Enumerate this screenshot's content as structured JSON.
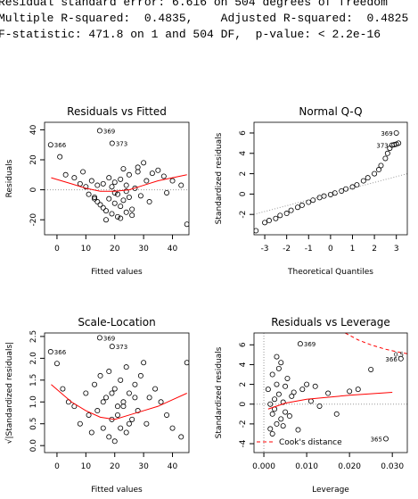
{
  "console": [
    "Residual standard error: 6.616 on 504 degrees of freedom",
    "Multiple R-squared:  0.4835,    Adjusted R-squared:  0.4825",
    "F-statistic: 471.8 on 1 and 504 DF,  p-value: < 2.2e-16"
  ],
  "chart_data": [
    {
      "type": "scatter",
      "title": "Residuals vs Fitted",
      "xlabel": "Fitted values",
      "ylabel": "Residuals",
      "xlim": [
        -4.3,
        45.7
      ],
      "ylim": [
        -30,
        45
      ],
      "xticks": [
        0,
        10,
        20,
        30,
        40
      ],
      "yticks": [
        -20,
        0,
        20,
        40
      ],
      "hline": 0,
      "series": [
        {
          "color": "#000000",
          "x": [
            -2.2,
            14.8,
            19.1,
            1,
            3,
            6,
            8,
            9,
            10,
            11,
            12,
            13,
            14,
            14,
            15,
            16,
            16,
            17,
            18,
            18,
            19,
            19,
            20,
            20,
            21,
            21,
            22,
            22,
            23,
            23,
            24,
            24,
            25,
            25,
            26,
            27,
            28,
            29,
            30,
            31,
            32,
            33,
            35,
            37,
            38,
            40,
            43,
            45,
            17,
            22,
            26,
            13,
            20,
            24,
            28
          ],
          "values": [
            30,
            39.4,
            31,
            22,
            10,
            8,
            4,
            12,
            2,
            -3,
            6,
            -5,
            -8,
            3,
            -10,
            -12,
            4,
            -14,
            -6,
            8,
            -16,
            2,
            -9,
            5,
            -18,
            -3,
            -11,
            7,
            -7,
            14,
            -15,
            3,
            -5,
            10,
            -13,
            1,
            12,
            -4,
            18,
            6,
            -8,
            11,
            13,
            9,
            -2,
            6,
            3,
            -23,
            -20,
            -19,
            -17,
            -6,
            -2,
            -1,
            15
          ]
        },
        {
          "color": "#ff0000",
          "style": "line",
          "x": [
            -2,
            5,
            10,
            15,
            20,
            25,
            30,
            35,
            40,
            45
          ],
          "values": [
            8,
            4,
            1,
            -1,
            -1,
            0,
            3,
            6,
            8,
            10
          ]
        }
      ],
      "annotations": [
        {
          "text": "366",
          "x": -2.2,
          "y": 30
        },
        {
          "text": "369",
          "x": 14.8,
          "y": 39.4
        },
        {
          "text": "373",
          "x": 19.1,
          "y": 31
        }
      ]
    },
    {
      "type": "scatter",
      "title": "Normal Q-Q",
      "xlabel": "Theoretical Quantiles",
      "ylabel": "Standardized residuals",
      "xlim": [
        -3.49,
        3.5
      ],
      "ylim": [
        -4,
        7.05
      ],
      "xticks": [
        -3,
        -2,
        -1,
        0,
        1,
        2,
        3
      ],
      "yticks": [
        -2,
        0,
        2,
        4,
        6
      ],
      "series": [
        {
          "color": "#000000",
          "x": [
            -3.4,
            -3,
            -2.8,
            -2.5,
            -2.3,
            -2,
            -1.8,
            -1.5,
            -1.3,
            -1,
            -0.8,
            -0.5,
            -0.3,
            0,
            0.2,
            0.5,
            0.7,
            1,
            1.2,
            1.5,
            1.7,
            2,
            2.2,
            2.3,
            2.5,
            2.6,
            2.7,
            2.8,
            2.9,
            3.0,
            3.1,
            3.0
          ],
          "values": [
            -3.6,
            -2.8,
            -2.6,
            -2.4,
            -2.1,
            -1.9,
            -1.6,
            -1.3,
            -1.1,
            -0.8,
            -0.6,
            -0.35,
            -0.2,
            -0.05,
            0.1,
            0.3,
            0.5,
            0.7,
            0.9,
            1.3,
            1.6,
            2.0,
            2.4,
            2.8,
            3.5,
            4.0,
            4.5,
            4.8,
            4.85,
            4.9,
            5.0,
            6.0
          ]
        },
        {
          "color": "#999999",
          "style": "dotted",
          "x": [
            -3.5,
            3.5
          ],
          "values": [
            -2,
            2
          ]
        }
      ],
      "annotations": [
        {
          "text": "369",
          "x": 3.0,
          "y": 6.0
        },
        {
          "text": "373",
          "x": 2.8,
          "y": 4.8
        }
      ]
    },
    {
      "type": "scatter",
      "title": "Scale-Location",
      "xlabel": "Fitted values",
      "ylabel": "√|Standardized residuals|",
      "xlim": [
        -4.3,
        45.7
      ],
      "ylim": [
        -0.16,
        2.58
      ],
      "xticks": [
        0,
        10,
        20,
        30,
        40
      ],
      "yticks": [
        {
          "value": 0,
          "label": "0.0"
        },
        0.5,
        {
          "value": 1,
          "label": "1.0"
        },
        1.5,
        {
          "value": 2,
          "label": "2.0"
        },
        2.5
      ],
      "series": [
        {
          "color": "#000000",
          "x": [
            -2.2,
            14.8,
            19.1,
            0,
            2,
            4,
            6,
            8,
            10,
            11,
            12,
            13,
            14,
            15,
            16,
            17,
            18,
            18,
            19,
            20,
            20,
            21,
            22,
            22,
            23,
            24,
            24,
            25,
            26,
            27,
            28,
            29,
            30,
            31,
            32,
            34,
            36,
            38,
            40,
            43,
            45,
            16,
            21,
            25,
            19,
            23,
            27
          ],
          "values": [
            2.15,
            2.47,
            2.27,
            1.88,
            1.3,
            1.0,
            0.9,
            0.5,
            1.2,
            0.7,
            0.3,
            1.4,
            0.8,
            1.6,
            0.4,
            1.1,
            0.2,
            1.7,
            0.6,
            1.3,
            0.1,
            0.9,
            1.5,
            0.4,
            1.0,
            1.8,
            0.3,
            1.2,
            0.6,
            1.4,
            0.8,
            1.6,
            1.9,
            0.5,
            1.1,
            1.3,
            1.0,
            0.7,
            0.4,
            0.2,
            1.9,
            1.0,
            0.7,
            0.5,
            1.2,
            0.9,
            1.1
          ]
        },
        {
          "color": "#ff0000",
          "style": "line",
          "x": [
            -2,
            5,
            10,
            15,
            20,
            25,
            30,
            35,
            40,
            45
          ],
          "values": [
            1.4,
            1.0,
            0.8,
            0.65,
            0.6,
            0.7,
            0.8,
            0.9,
            1.05,
            1.2
          ]
        }
      ],
      "annotations": [
        {
          "text": "366",
          "x": -2.2,
          "y": 2.15
        },
        {
          "text": "369",
          "x": 14.8,
          "y": 2.47
        },
        {
          "text": "373",
          "x": 19.1,
          "y": 2.27
        }
      ]
    },
    {
      "type": "scatter",
      "title": "Residuals vs Leverage",
      "xlabel": "Leverage",
      "ylabel": "Standardized residuals",
      "xlim": [
        -0.0023,
        0.0335
      ],
      "ylim": [
        -4.9,
        7.2
      ],
      "xticks": [
        {
          "value": 0,
          "label": "0.000"
        },
        {
          "value": 0.01,
          "label": "0.010"
        },
        {
          "value": 0.02,
          "label": "0.020"
        },
        {
          "value": 0.03,
          "label": "0.030"
        }
      ],
      "yticks": [
        -4,
        -2,
        0,
        2,
        4,
        6
      ],
      "hline": 0,
      "vline": 0,
      "legend": "bottomleft",
      "series": [
        {
          "color": "#000000",
          "x": [
            0.0085,
            0.032,
            0.0285,
            0.001,
            0.0015,
            0.002,
            0.002,
            0.0025,
            0.003,
            0.003,
            0.0035,
            0.004,
            0.004,
            0.0045,
            0.005,
            0.005,
            0.0055,
            0.006,
            0.0065,
            0.007,
            0.008,
            0.009,
            0.01,
            0.011,
            0.012,
            0.013,
            0.015,
            0.017,
            0.02,
            0.022,
            0.025,
            0.0015,
            0.0025,
            0.0035,
            0.0045,
            0.003,
            0.002
          ],
          "values": [
            6.1,
            4.6,
            -3.5,
            1.5,
            -2.5,
            3.0,
            -1.0,
            0.5,
            -2.0,
            2.0,
            1.0,
            -1.5,
            4.2,
            0.2,
            -0.8,
            1.8,
            2.6,
            -1.2,
            0.8,
            1.2,
            -2.6,
            1.5,
            2.0,
            0.3,
            1.8,
            -0.2,
            1.1,
            -1.0,
            1.3,
            1.5,
            3.5,
            0.0,
            -0.5,
            3.6,
            -2.2,
            4.8,
            -3.0
          ]
        },
        {
          "color": "#ff0000",
          "style": "line",
          "x": [
            0.001,
            0.005,
            0.01,
            0.02,
            0.03
          ],
          "values": [
            -0.5,
            0.1,
            0.5,
            0.9,
            1.2
          ]
        },
        {
          "name": "Cook's distance",
          "color": "#ff0000",
          "style": "dashed",
          "x": [
            0.019,
            0.022,
            0.025,
            0.028,
            0.031,
            0.0335
          ],
          "values": [
            7.2,
            6.5,
            6.0,
            5.6,
            5.3,
            5.1
          ]
        }
      ],
      "annotations": [
        {
          "text": "369",
          "x": 0.0085,
          "y": 6.1
        },
        {
          "text": "366",
          "x": 0.032,
          "y": 4.6
        },
        {
          "text": "365",
          "x": 0.0285,
          "y": -3.5
        },
        {
          "text": "0.5",
          "x": 0.0335,
          "y": 5.1
        }
      ]
    }
  ]
}
